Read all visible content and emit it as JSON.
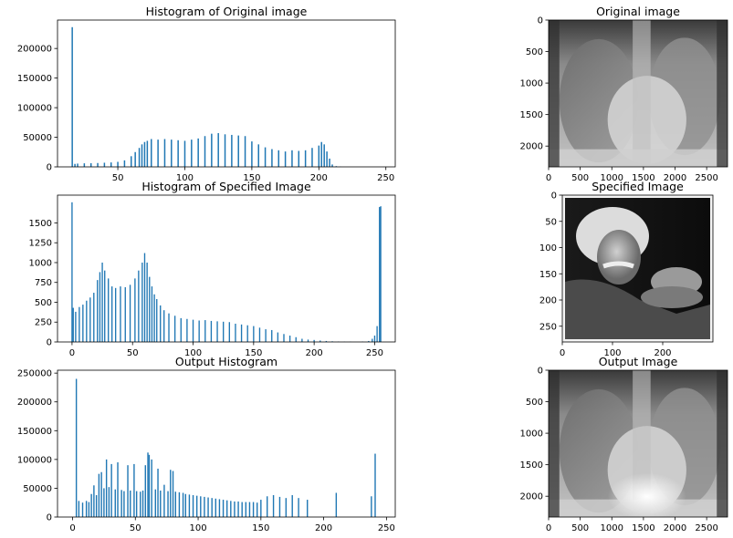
{
  "figure": {
    "background": "#ffffff"
  },
  "chart_data": [
    {
      "type": "bar",
      "title": "Histogram of Original image",
      "bar_color": "#1f77b4",
      "xlim": [
        5,
        257
      ],
      "ylim": [
        0,
        248000
      ],
      "xticks": [
        50,
        100,
        150,
        200,
        250
      ],
      "yticks": [
        0,
        50000,
        100000,
        150000,
        200000
      ],
      "bins": [
        [
          16,
          236000
        ],
        [
          18,
          5000
        ],
        [
          20,
          5500
        ],
        [
          25,
          6000
        ],
        [
          30,
          6200
        ],
        [
          35,
          6500
        ],
        [
          40,
          7000
        ],
        [
          45,
          7500
        ],
        [
          50,
          8500
        ],
        [
          55,
          11000
        ],
        [
          60,
          18000
        ],
        [
          63,
          25000
        ],
        [
          66,
          32000
        ],
        [
          68,
          38000
        ],
        [
          70,
          42000
        ],
        [
          72,
          44000
        ],
        [
          75,
          47000
        ],
        [
          80,
          46000
        ],
        [
          85,
          47000
        ],
        [
          90,
          46000
        ],
        [
          95,
          45000
        ],
        [
          100,
          44000
        ],
        [
          105,
          46000
        ],
        [
          110,
          48000
        ],
        [
          115,
          52000
        ],
        [
          120,
          56000
        ],
        [
          125,
          57000
        ],
        [
          130,
          55000
        ],
        [
          135,
          54000
        ],
        [
          140,
          53000
        ],
        [
          145,
          52000
        ],
        [
          150,
          43000
        ],
        [
          155,
          38000
        ],
        [
          160,
          33000
        ],
        [
          165,
          30000
        ],
        [
          170,
          28000
        ],
        [
          175,
          26000
        ],
        [
          180,
          28000
        ],
        [
          185,
          27000
        ],
        [
          190,
          28000
        ],
        [
          195,
          32000
        ],
        [
          200,
          36000
        ],
        [
          202,
          42000
        ],
        [
          204,
          38000
        ],
        [
          206,
          26000
        ],
        [
          208,
          14000
        ],
        [
          210,
          4000
        ],
        [
          213,
          1200
        ],
        [
          216,
          400
        ]
      ]
    },
    {
      "type": "image",
      "title": "Original image",
      "xticks": [
        0,
        500,
        1000,
        1500,
        2000,
        2500
      ],
      "yticks": [
        0,
        500,
        1000,
        1500,
        2000
      ],
      "extent": [
        2830,
        2330
      ]
    },
    {
      "type": "bar",
      "title": "Histogram of Specified Image",
      "bar_color": "#1f77b4",
      "xlim": [
        -12,
        267
      ],
      "ylim": [
        0,
        1850
      ],
      "xticks": [
        0,
        50,
        100,
        150,
        200,
        250
      ],
      "yticks": [
        0,
        250,
        500,
        750,
        1000,
        1250,
        1500
      ],
      "bins": [
        [
          0,
          1760
        ],
        [
          1,
          430
        ],
        [
          3,
          380
        ],
        [
          6,
          440
        ],
        [
          9,
          470
        ],
        [
          12,
          520
        ],
        [
          15,
          560
        ],
        [
          18,
          620
        ],
        [
          21,
          780
        ],
        [
          23,
          880
        ],
        [
          25,
          1000
        ],
        [
          27,
          900
        ],
        [
          30,
          800
        ],
        [
          33,
          700
        ],
        [
          36,
          680
        ],
        [
          40,
          700
        ],
        [
          44,
          690
        ],
        [
          48,
          720
        ],
        [
          52,
          800
        ],
        [
          55,
          900
        ],
        [
          58,
          1000
        ],
        [
          60,
          1120
        ],
        [
          62,
          1000
        ],
        [
          64,
          820
        ],
        [
          66,
          700
        ],
        [
          68,
          600
        ],
        [
          70,
          540
        ],
        [
          73,
          460
        ],
        [
          76,
          400
        ],
        [
          80,
          360
        ],
        [
          85,
          330
        ],
        [
          90,
          300
        ],
        [
          95,
          290
        ],
        [
          100,
          280
        ],
        [
          105,
          270
        ],
        [
          110,
          275
        ],
        [
          115,
          265
        ],
        [
          120,
          260
        ],
        [
          125,
          255
        ],
        [
          130,
          250
        ],
        [
          135,
          230
        ],
        [
          140,
          220
        ],
        [
          145,
          210
        ],
        [
          150,
          200
        ],
        [
          155,
          180
        ],
        [
          160,
          160
        ],
        [
          165,
          150
        ],
        [
          170,
          120
        ],
        [
          175,
          100
        ],
        [
          180,
          80
        ],
        [
          185,
          60
        ],
        [
          190,
          40
        ],
        [
          195,
          30
        ],
        [
          200,
          25
        ],
        [
          205,
          18
        ],
        [
          210,
          12
        ],
        [
          215,
          8
        ],
        [
          220,
          5
        ],
        [
          225,
          3
        ],
        [
          230,
          3
        ],
        [
          240,
          5
        ],
        [
          245,
          12
        ],
        [
          248,
          40
        ],
        [
          250,
          80
        ],
        [
          252,
          200
        ],
        [
          254,
          1700
        ],
        [
          255,
          1710
        ]
      ]
    },
    {
      "type": "image",
      "title": "Specified Image",
      "xticks": [
        0,
        100,
        200
      ],
      "yticks": [
        0,
        50,
        100,
        150,
        200,
        250
      ],
      "extent": [
        300,
        280
      ]
    },
    {
      "type": "bar",
      "title": "Output Histogram",
      "bar_color": "#1f77b4",
      "xlim": [
        -12,
        257
      ],
      "ylim": [
        0,
        255000
      ],
      "xticks": [
        0,
        50,
        100,
        150,
        200,
        250
      ],
      "yticks": [
        0,
        50000,
        100000,
        150000,
        200000,
        250000
      ],
      "bins": [
        [
          3,
          240000
        ],
        [
          5,
          28000
        ],
        [
          8,
          25000
        ],
        [
          11,
          28000
        ],
        [
          13,
          26000
        ],
        [
          15,
          40000
        ],
        [
          17,
          55000
        ],
        [
          19,
          38000
        ],
        [
          21,
          75000
        ],
        [
          23,
          78000
        ],
        [
          25,
          50000
        ],
        [
          27,
          100000
        ],
        [
          29,
          52000
        ],
        [
          31,
          92000
        ],
        [
          34,
          48000
        ],
        [
          36,
          95000
        ],
        [
          39,
          47000
        ],
        [
          41,
          45000
        ],
        [
          44,
          90000
        ],
        [
          46,
          46000
        ],
        [
          49,
          92000
        ],
        [
          51,
          45000
        ],
        [
          54,
          44000
        ],
        [
          56,
          46000
        ],
        [
          58,
          90000
        ],
        [
          60,
          112000
        ],
        [
          61,
          108000
        ],
        [
          63,
          100000
        ],
        [
          66,
          48000
        ],
        [
          68,
          84000
        ],
        [
          70,
          46000
        ],
        [
          73,
          56000
        ],
        [
          76,
          45000
        ],
        [
          78,
          82000
        ],
        [
          80,
          80000
        ],
        [
          82,
          44000
        ],
        [
          85,
          43000
        ],
        [
          88,
          42000
        ],
        [
          90,
          40000
        ],
        [
          93,
          39000
        ],
        [
          96,
          38000
        ],
        [
          99,
          37000
        ],
        [
          102,
          36000
        ],
        [
          105,
          35000
        ],
        [
          108,
          34000
        ],
        [
          111,
          33000
        ],
        [
          114,
          32000
        ],
        [
          117,
          31000
        ],
        [
          120,
          30000
        ],
        [
          123,
          29000
        ],
        [
          126,
          28000
        ],
        [
          129,
          27000
        ],
        [
          132,
          27000
        ],
        [
          135,
          26000
        ],
        [
          138,
          26000
        ],
        [
          141,
          26000
        ],
        [
          144,
          26000
        ],
        [
          147,
          25000
        ],
        [
          150,
          30000
        ],
        [
          155,
          36000
        ],
        [
          160,
          38000
        ],
        [
          165,
          35000
        ],
        [
          170,
          33000
        ],
        [
          175,
          38000
        ],
        [
          180,
          33000
        ],
        [
          187,
          30000
        ],
        [
          210,
          42000
        ],
        [
          238,
          36000
        ],
        [
          241,
          110000
        ]
      ]
    },
    {
      "type": "image",
      "title": "Output Image",
      "xticks": [
        0,
        500,
        1000,
        1500,
        2000,
        2500
      ],
      "yticks": [
        0,
        500,
        1000,
        1500,
        2000
      ],
      "extent": [
        2830,
        2330
      ]
    }
  ]
}
